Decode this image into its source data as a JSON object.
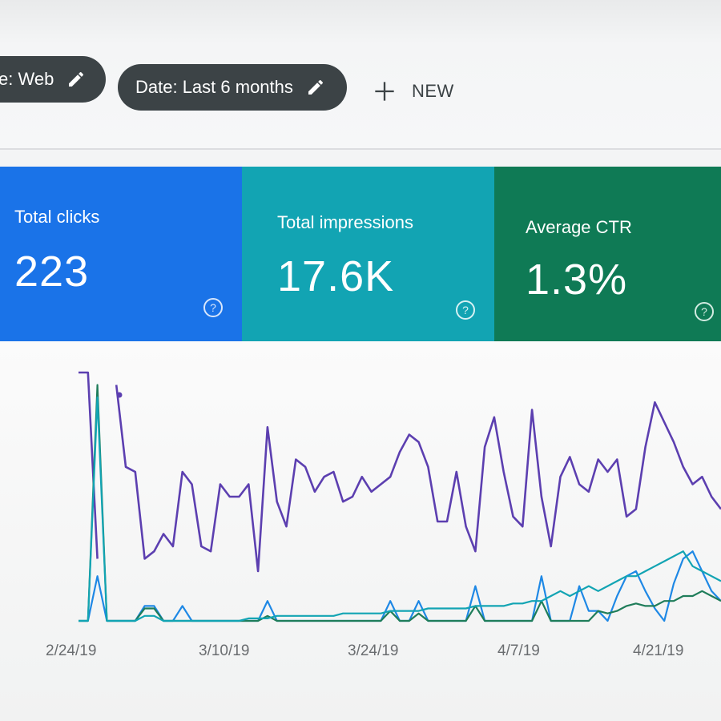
{
  "filters": {
    "type_chip": {
      "label": "e: Web",
      "icon": "pencil-icon"
    },
    "date_chip": {
      "label": "Date: Last 6 months",
      "icon": "pencil-icon"
    },
    "new_button": {
      "label": "NEW",
      "icon": "plus-icon"
    }
  },
  "cards": {
    "clicks": {
      "label": "Total clicks",
      "value": "223",
      "color": "#1a73e8",
      "icon": "help-circle-icon"
    },
    "impressions": {
      "label": "Total impressions",
      "value": "17.6K",
      "color": "#12a4b3",
      "icon": "help-circle-icon"
    },
    "ctr": {
      "label": "Average CTR",
      "value": "1.3%",
      "color": "#0f7a55",
      "icon": "help-circle-icon"
    }
  },
  "chart_data": {
    "type": "line",
    "x_ticks": [
      "2/24/19",
      "3/10/19",
      "3/24/19",
      "4/7/19",
      "4/21/19"
    ],
    "grid": false,
    "series": [
      {
        "color": "#5c3fb0",
        "values": [
          100,
          100,
          25,
          null,
          95,
          62,
          60,
          25,
          28,
          35,
          30,
          60,
          55,
          30,
          28,
          55,
          50,
          50,
          55,
          20,
          78,
          48,
          38,
          65,
          62,
          52,
          58,
          60,
          48,
          50,
          58,
          52,
          55,
          58,
          68,
          75,
          72,
          62,
          40,
          40,
          60,
          38,
          28,
          70,
          82,
          60,
          42,
          38,
          85,
          50,
          30,
          58,
          66,
          55,
          52,
          65,
          60,
          65,
          42,
          45,
          70,
          88,
          80,
          72,
          62,
          55,
          58,
          50,
          45
        ]
      },
      {
        "color": "#1e88e5",
        "values": [
          0,
          0,
          18,
          0,
          0,
          0,
          0,
          6,
          6,
          0,
          0,
          6,
          0,
          0,
          0,
          0,
          0,
          0,
          0,
          0,
          8,
          0,
          0,
          0,
          0,
          0,
          0,
          0,
          0,
          0,
          0,
          0,
          0,
          8,
          0,
          0,
          8,
          0,
          0,
          0,
          0,
          0,
          14,
          0,
          0,
          0,
          0,
          0,
          0,
          18,
          0,
          0,
          0,
          14,
          4,
          4,
          0,
          10,
          18,
          20,
          12,
          5,
          0,
          15,
          25,
          28,
          20,
          12,
          8
        ]
      },
      {
        "color": "#1f7d5a",
        "values": [
          0,
          0,
          95,
          0,
          0,
          0,
          0,
          5,
          5,
          0,
          0,
          0,
          0,
          0,
          0,
          0,
          0,
          0,
          0,
          0,
          2,
          0,
          0,
          0,
          0,
          0,
          0,
          0,
          0,
          0,
          0,
          0,
          0,
          4,
          0,
          0,
          3,
          0,
          0,
          0,
          0,
          0,
          6,
          0,
          0,
          0,
          0,
          0,
          0,
          8,
          0,
          0,
          0,
          0,
          0,
          4,
          3,
          4,
          6,
          7,
          6,
          6,
          8,
          8,
          10,
          10,
          12,
          10,
          8
        ]
      },
      {
        "color": "#12a4b3",
        "values": [
          0,
          0,
          90,
          0,
          0,
          0,
          0,
          2,
          2,
          0,
          0,
          0,
          0,
          0,
          0,
          0,
          0,
          0,
          1,
          1,
          1,
          2,
          2,
          2,
          2,
          2,
          2,
          2,
          3,
          3,
          3,
          3,
          3,
          4,
          4,
          4,
          4,
          5,
          5,
          5,
          5,
          5,
          6,
          6,
          6,
          6,
          7,
          7,
          8,
          8,
          10,
          12,
          10,
          12,
          14,
          12,
          14,
          16,
          18,
          18,
          20,
          22,
          24,
          26,
          28,
          22,
          20,
          18,
          16
        ]
      }
    ]
  }
}
